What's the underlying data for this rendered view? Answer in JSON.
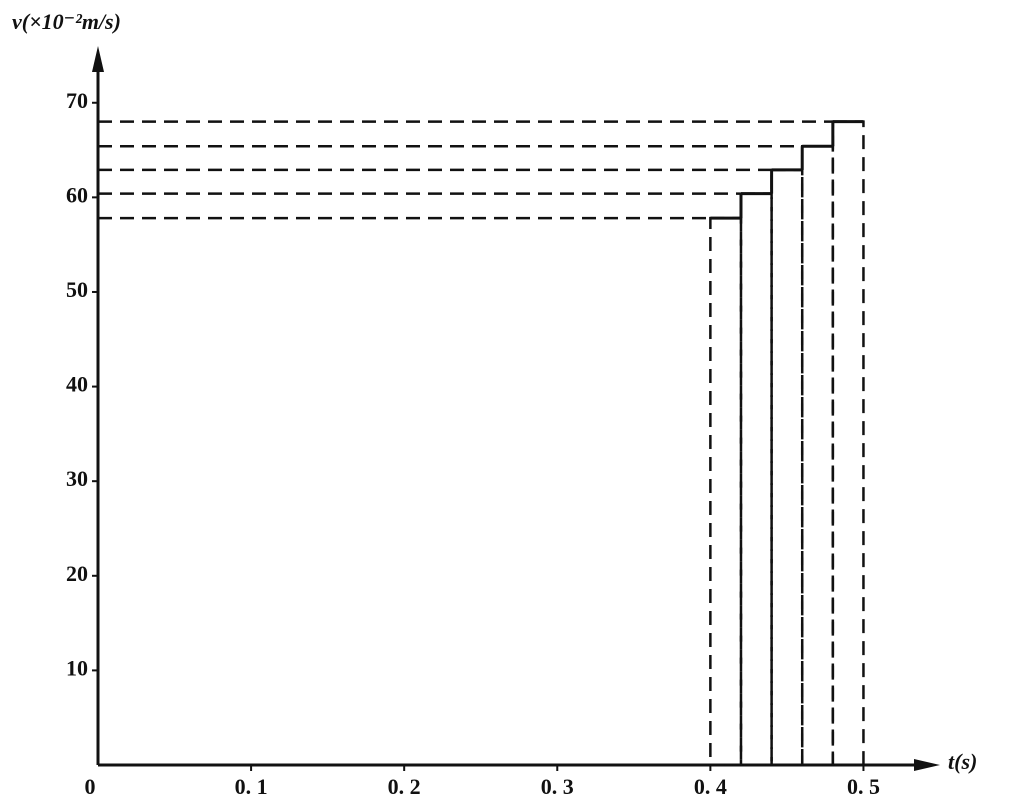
{
  "chart_data": {
    "type": "histogram",
    "y_label": "v(×10⁻²m/s)",
    "x_label": "t(s)",
    "bins": [
      0.4,
      0.42,
      0.44,
      0.46,
      0.48,
      0.5
    ],
    "values": [
      57.8,
      60.4,
      62.9,
      65.4,
      68.0
    ],
    "color": "#111111",
    "xlim": [
      0,
      0.55
    ],
    "ylim": [
      0,
      76
    ],
    "xticks": [
      0,
      {
        "value": 0.1,
        "label": "0. 1"
      },
      {
        "value": 0.2,
        "label": "0. 2"
      },
      {
        "value": 0.3,
        "label": "0. 3"
      },
      {
        "value": 0.4,
        "label": "0. 4"
      },
      {
        "value": 0.5,
        "label": "0. 5"
      }
    ],
    "yticks": [
      10,
      20,
      30,
      40,
      50,
      60,
      70
    ]
  }
}
